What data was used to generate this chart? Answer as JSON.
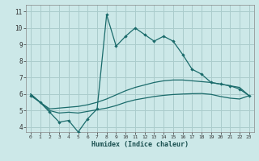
{
  "xlabel": "Humidex (Indice chaleur)",
  "bg_color": "#cce8e8",
  "grid_color": "#aacccc",
  "line_color": "#1a6b6b",
  "ylim": [
    3.7,
    11.4
  ],
  "xlim": [
    -0.5,
    23.5
  ],
  "yticks": [
    4,
    5,
    6,
    7,
    8,
    9,
    10,
    11
  ],
  "xticks": [
    0,
    1,
    2,
    3,
    4,
    5,
    6,
    7,
    8,
    9,
    10,
    11,
    12,
    13,
    14,
    15,
    16,
    17,
    18,
    19,
    20,
    21,
    22,
    23
  ],
  "line1_x": [
    0,
    1,
    2,
    3,
    4,
    5,
    6,
    7,
    8,
    9,
    10,
    11,
    12,
    13,
    14,
    15,
    16,
    17,
    18,
    19,
    20,
    21,
    22,
    23
  ],
  "line1_y": [
    5.9,
    5.5,
    4.9,
    4.3,
    4.4,
    3.7,
    4.5,
    5.1,
    10.8,
    8.9,
    9.5,
    10.0,
    9.6,
    9.2,
    9.5,
    9.2,
    8.4,
    7.5,
    7.2,
    6.7,
    6.6,
    6.5,
    6.3,
    5.9
  ],
  "line2_x": [
    0,
    1,
    2,
    3,
    4,
    5,
    6,
    7,
    8,
    9,
    10,
    11,
    12,
    13,
    14,
    15,
    16,
    17,
    18,
    19,
    20,
    21,
    22,
    23
  ],
  "line2_y": [
    6.0,
    5.5,
    5.1,
    5.15,
    5.2,
    5.25,
    5.35,
    5.5,
    5.7,
    5.95,
    6.2,
    6.4,
    6.55,
    6.7,
    6.8,
    6.85,
    6.85,
    6.8,
    6.75,
    6.7,
    6.6,
    6.5,
    6.4,
    5.9
  ],
  "line3_x": [
    0,
    1,
    2,
    3,
    4,
    5,
    6,
    7,
    8,
    9,
    10,
    11,
    12,
    13,
    14,
    15,
    16,
    17,
    18,
    19,
    20,
    21,
    22,
    23
  ],
  "line3_y": [
    6.0,
    5.5,
    5.0,
    4.85,
    4.9,
    4.85,
    4.95,
    5.05,
    5.15,
    5.3,
    5.5,
    5.65,
    5.75,
    5.85,
    5.92,
    5.97,
    6.0,
    6.02,
    6.03,
    5.98,
    5.85,
    5.75,
    5.7,
    5.9
  ]
}
